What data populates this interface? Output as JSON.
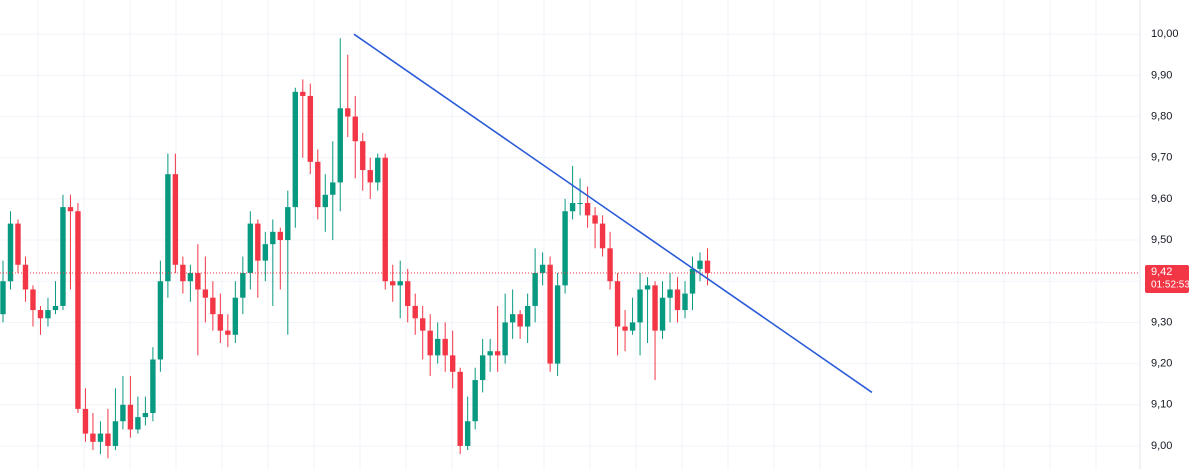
{
  "chart_data": {
    "type": "candlestick",
    "ylim": [
      8.944,
      10.083
    ],
    "yticks": [
      {
        "value": 9.0,
        "label": "9,00"
      },
      {
        "value": 9.1,
        "label": "9,10"
      },
      {
        "value": 9.2,
        "label": "9,20"
      },
      {
        "value": 9.3,
        "label": "9,30"
      },
      {
        "value": 9.4,
        "label": "9,40"
      },
      {
        "value": 9.5,
        "label": "9,50"
      },
      {
        "value": 9.6,
        "label": "9,60"
      },
      {
        "value": 9.7,
        "label": "9,70"
      },
      {
        "value": 9.8,
        "label": "9,80"
      },
      {
        "value": 9.9,
        "label": "9,90"
      },
      {
        "value": 10.0,
        "label": "10,00"
      }
    ],
    "grid": true,
    "up_color": "#089981",
    "down_color": "#f23645",
    "open": [
      9.32,
      9.4,
      9.54,
      9.44,
      9.38,
      9.33,
      9.31,
      9.33,
      9.34,
      9.58,
      9.57,
      9.09,
      9.03,
      9.01,
      9.03,
      9.0,
      9.06,
      9.1,
      9.04,
      9.07,
      9.08,
      9.21,
      9.4,
      9.66,
      9.44,
      9.4,
      9.42,
      9.38,
      9.36,
      9.32,
      9.28,
      9.27,
      9.36,
      9.42,
      9.54,
      9.45,
      9.49,
      9.52,
      9.5,
      9.58,
      9.86,
      9.85,
      9.69,
      9.58,
      9.61,
      9.64,
      9.82,
      9.8,
      9.74,
      9.67,
      9.64,
      9.7,
      9.4,
      9.39,
      9.4,
      9.34,
      9.31,
      9.28,
      9.22,
      9.26,
      9.22,
      9.18,
      9.0,
      9.06,
      9.16,
      9.22,
      9.23,
      9.22,
      9.3,
      9.32,
      9.29,
      9.34,
      9.42,
      9.44,
      9.2,
      9.39,
      9.57,
      9.59,
      9.59,
      9.56,
      9.54,
      9.48,
      9.4,
      9.29,
      9.28,
      9.3,
      9.38,
      9.39,
      9.28,
      9.36,
      9.38,
      9.33,
      9.37,
      9.43,
      9.45
    ],
    "high": [
      9.45,
      9.57,
      9.55,
      9.46,
      9.39,
      9.34,
      9.36,
      9.4,
      9.61,
      9.61,
      9.59,
      9.14,
      9.08,
      9.06,
      9.09,
      9.14,
      9.17,
      9.17,
      9.12,
      9.12,
      9.24,
      9.45,
      9.71,
      9.71,
      9.46,
      9.44,
      9.49,
      9.46,
      9.4,
      9.37,
      9.32,
      9.4,
      9.46,
      9.57,
      9.55,
      9.52,
      9.55,
      9.53,
      9.62,
      9.87,
      9.89,
      9.88,
      9.72,
      9.66,
      9.74,
      9.99,
      9.95,
      9.85,
      9.76,
      9.7,
      9.71,
      9.71,
      9.44,
      9.45,
      9.43,
      9.37,
      9.34,
      9.32,
      9.3,
      9.3,
      9.28,
      9.19,
      9.12,
      9.19,
      9.26,
      9.26,
      9.34,
      9.37,
      9.38,
      9.33,
      9.37,
      9.48,
      9.47,
      9.46,
      9.42,
      9.6,
      9.68,
      9.65,
      9.63,
      9.58,
      9.56,
      9.52,
      9.42,
      9.33,
      9.36,
      9.42,
      9.41,
      9.4,
      9.4,
      9.42,
      9.41,
      9.4,
      9.46,
      9.47,
      9.48
    ],
    "low": [
      9.3,
      9.38,
      9.42,
      9.35,
      9.29,
      9.27,
      9.29,
      9.32,
      9.33,
      9.38,
      9.08,
      9.01,
      8.99,
      8.98,
      8.97,
      8.99,
      9.04,
      9.02,
      9.03,
      9.05,
      9.06,
      9.18,
      9.36,
      9.42,
      9.37,
      9.35,
      9.22,
      9.3,
      9.28,
      9.25,
      9.24,
      9.25,
      9.32,
      9.38,
      9.36,
      9.4,
      9.34,
      9.38,
      9.27,
      9.53,
      9.7,
      9.66,
      9.55,
      9.52,
      9.5,
      9.57,
      9.75,
      9.65,
      9.62,
      9.6,
      9.62,
      9.38,
      9.35,
      9.31,
      9.3,
      9.27,
      9.21,
      9.17,
      9.2,
      9.18,
      9.14,
      8.98,
      8.99,
      9.04,
      9.13,
      9.18,
      9.18,
      9.2,
      9.26,
      9.26,
      9.25,
      9.3,
      9.39,
      9.18,
      9.17,
      9.37,
      9.55,
      9.56,
      9.53,
      9.48,
      9.46,
      9.38,
      9.22,
      9.23,
      9.27,
      9.22,
      9.25,
      9.16,
      9.26,
      9.3,
      9.3,
      9.31,
      9.33,
      9.4,
      9.39
    ],
    "close": [
      9.4,
      9.54,
      9.44,
      9.38,
      9.33,
      9.31,
      9.33,
      9.34,
      9.58,
      9.57,
      9.09,
      9.03,
      9.01,
      9.03,
      9.0,
      9.06,
      9.1,
      9.04,
      9.07,
      9.08,
      9.21,
      9.4,
      9.66,
      9.44,
      9.4,
      9.42,
      9.38,
      9.36,
      9.32,
      9.28,
      9.27,
      9.36,
      9.42,
      9.54,
      9.45,
      9.49,
      9.52,
      9.5,
      9.58,
      9.86,
      9.85,
      9.69,
      9.58,
      9.61,
      9.64,
      9.82,
      9.8,
      9.74,
      9.67,
      9.64,
      9.7,
      9.4,
      9.39,
      9.4,
      9.34,
      9.31,
      9.28,
      9.22,
      9.26,
      9.22,
      9.18,
      9.0,
      9.06,
      9.16,
      9.22,
      9.23,
      9.22,
      9.3,
      9.32,
      9.29,
      9.34,
      9.42,
      9.44,
      9.2,
      9.39,
      9.57,
      9.59,
      9.59,
      9.56,
      9.54,
      9.48,
      9.4,
      9.29,
      9.28,
      9.3,
      9.38,
      9.39,
      9.28,
      9.36,
      9.38,
      9.33,
      9.37,
      9.43,
      9.45,
      9.42
    ],
    "last_price": {
      "value": 9.42,
      "label": "9,42"
    },
    "countdown": "01:52:53",
    "trendline": {
      "from": 10.0,
      "to": 9.13,
      "color": "#2a5bd7"
    }
  }
}
